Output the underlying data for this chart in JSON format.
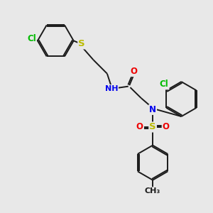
{
  "bg_color": "#e8e8e8",
  "bond_color": "#1a1a1a",
  "bond_lw": 1.4,
  "atom_colors": {
    "Cl": "#00bb00",
    "S": "#bbbb00",
    "N": "#0000ee",
    "O": "#ee0000",
    "H": "#666666",
    "C": "#1a1a1a"
  },
  "fs": 8.5,
  "bg": "#e8e8e8"
}
